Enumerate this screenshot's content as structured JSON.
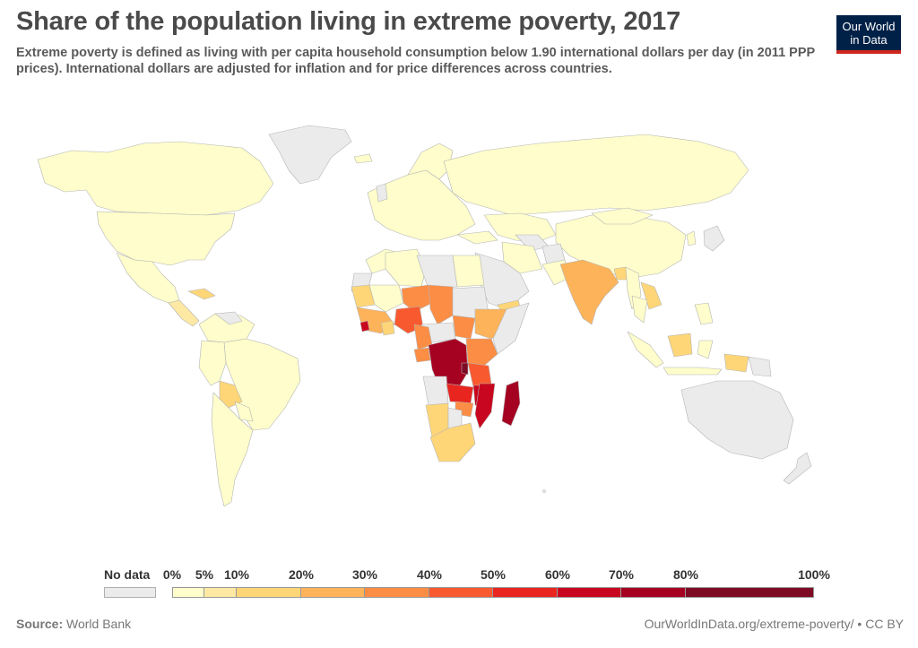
{
  "header": {
    "title": "Share of the population living in extreme poverty, 2017",
    "subtitle": "Extreme poverty is defined as living with per capita household consumption below 1.90 international dollars per day (in 2011 PPP prices). International dollars are adjusted for inflation and for price differences across countries."
  },
  "logo": {
    "line1": "Our World",
    "line2": "in Data"
  },
  "colors": {
    "no_data": "#ebebeb",
    "p0_5": "#fefdcb",
    "p5_10": "#fee9a4",
    "p10_20": "#fed677",
    "p20_30": "#fdb35a",
    "p30_40": "#fc8d45",
    "p40_50": "#f8592f",
    "p50_60": "#e8261f",
    "p60_70": "#c9061f",
    "p70_80": "#a50221",
    "p80_100": "#7d0b24"
  },
  "legend": {
    "no_data_label": "No data",
    "ticks": [
      "0%",
      "5%",
      "10%",
      "20%",
      "30%",
      "40%",
      "50%",
      "60%",
      "70%",
      "80%",
      "100%"
    ],
    "bins": [
      {
        "from": 0,
        "to": 5,
        "color": "#fefdcb"
      },
      {
        "from": 5,
        "to": 10,
        "color": "#fee9a4"
      },
      {
        "from": 10,
        "to": 20,
        "color": "#fed677"
      },
      {
        "from": 20,
        "to": 30,
        "color": "#fdb35a"
      },
      {
        "from": 30,
        "to": 40,
        "color": "#fc8d45"
      },
      {
        "from": 40,
        "to": 50,
        "color": "#f8592f"
      },
      {
        "from": 50,
        "to": 60,
        "color": "#e8261f"
      },
      {
        "from": 60,
        "to": 70,
        "color": "#c9061f"
      },
      {
        "from": 70,
        "to": 80,
        "color": "#a50221"
      },
      {
        "from": 80,
        "to": 100,
        "color": "#7d0b24"
      }
    ]
  },
  "footer": {
    "source_label": "Source:",
    "source": "World Bank",
    "link": "OurWorldInData.org/extreme-poverty/ • CC BY"
  }
}
